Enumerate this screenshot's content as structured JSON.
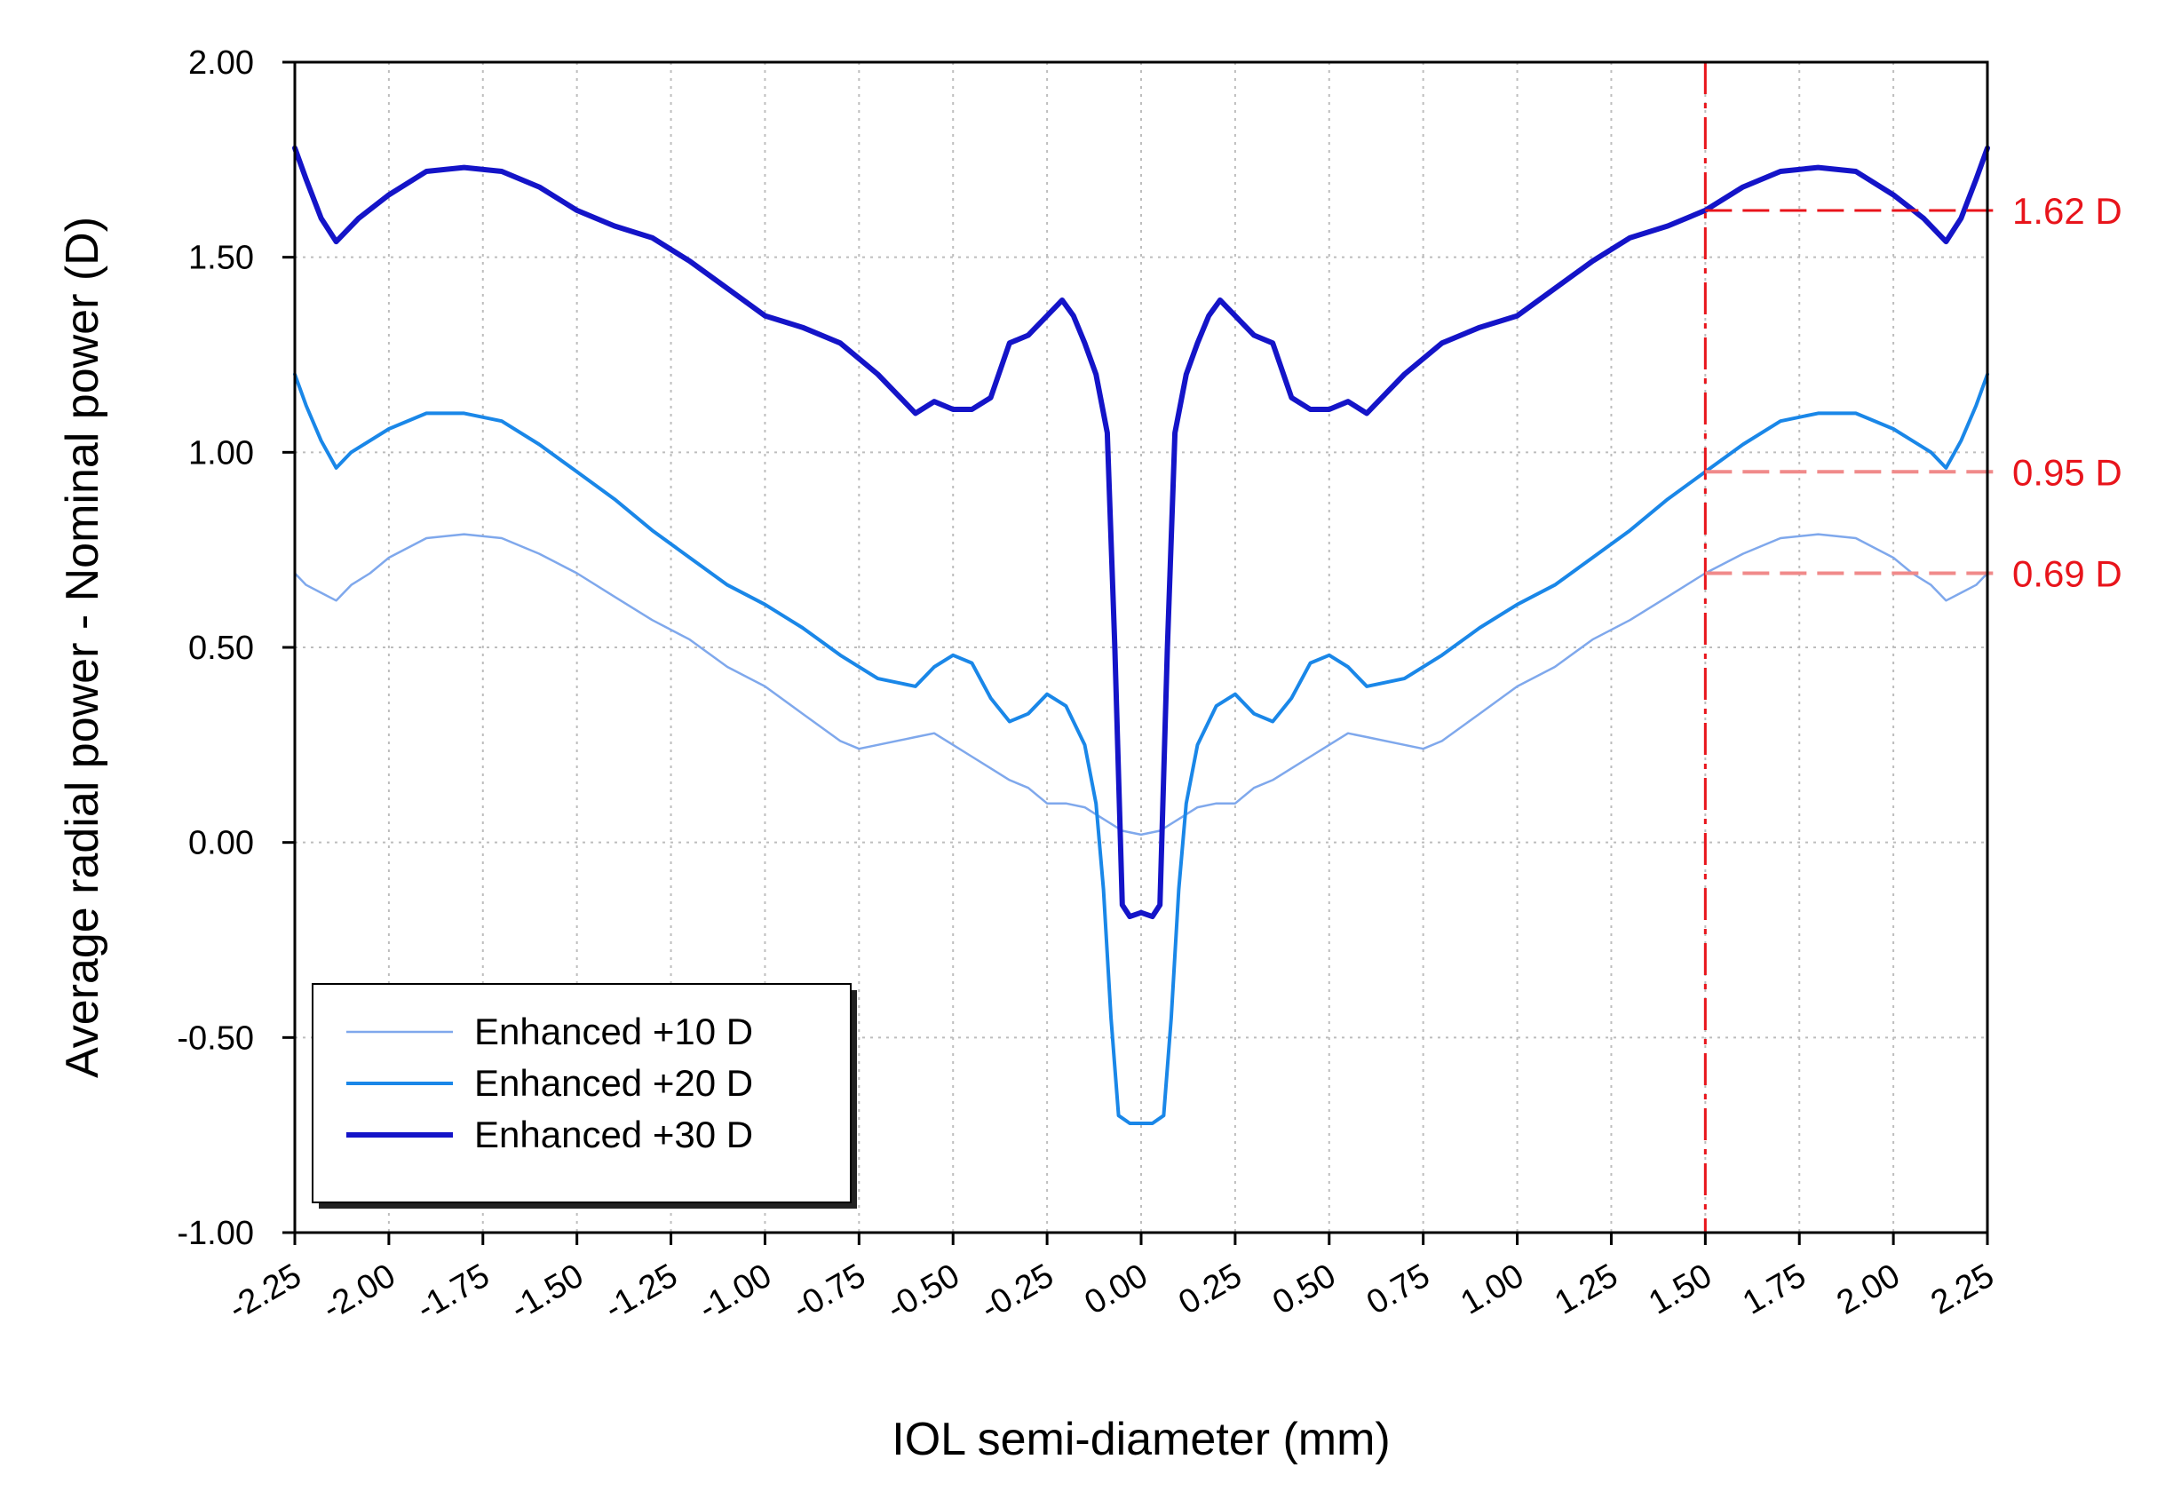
{
  "chart_data": {
    "type": "line",
    "xlabel": "IOL semi-diameter (mm)",
    "ylabel": "Average radial power - Nominal power (D)",
    "xlim": [
      -2.25,
      2.25
    ],
    "ylim": [
      -1.0,
      2.0
    ],
    "x_ticks": [
      -2.25,
      -2.0,
      -1.75,
      -1.5,
      -1.25,
      -1.0,
      -0.75,
      -0.5,
      -0.25,
      0.0,
      0.25,
      0.5,
      0.75,
      1.0,
      1.25,
      1.5,
      1.75,
      2.0,
      2.25
    ],
    "x_tick_labels": [
      "-2.25",
      "-2.00",
      "-1.75",
      "-1.50",
      "-1.25",
      "-1.00",
      "-0.75",
      "-0.50",
      "-0.25",
      "0.00",
      "0.25",
      "0.50",
      "0.75",
      "1.00",
      "1.25",
      "1.50",
      "1.75",
      "2.00",
      "2.25"
    ],
    "y_ticks": [
      -1.0,
      -0.5,
      0.0,
      0.5,
      1.0,
      1.5,
      2.0
    ],
    "y_tick_labels": [
      "-1.00",
      "-0.50",
      "0.00",
      "0.50",
      "1.00",
      "1.50",
      "2.00"
    ],
    "grid": true,
    "legend_position": "bottom-left",
    "highlight_x": 1.5,
    "highlight_x_label": "1.50",
    "highlight_color": "#e8141b",
    "annotations": [
      {
        "series": "Enhanced +30 D",
        "y": 1.62,
        "label": "1.62 D",
        "style": "solid"
      },
      {
        "series": "Enhanced +20 D",
        "y": 0.95,
        "label": "0.95 D",
        "style": "faded"
      },
      {
        "series": "Enhanced +10 D",
        "y": 0.69,
        "label": "0.69 D",
        "style": "faded"
      }
    ],
    "series": [
      {
        "name": "Enhanced +10 D",
        "color": "#7fa8ec",
        "x": [
          0.0,
          0.05,
          0.1,
          0.15,
          0.2,
          0.25,
          0.3,
          0.35,
          0.4,
          0.45,
          0.5,
          0.55,
          0.6,
          0.7,
          0.75,
          0.8,
          0.9,
          1.0,
          1.1,
          1.2,
          1.3,
          1.4,
          1.5,
          1.6,
          1.7,
          1.8,
          1.9,
          2.0,
          2.05,
          2.1,
          2.14,
          2.18,
          2.22,
          2.25
        ],
        "y": [
          0.02,
          0.03,
          0.06,
          0.09,
          0.1,
          0.1,
          0.14,
          0.16,
          0.19,
          0.22,
          0.25,
          0.28,
          0.27,
          0.25,
          0.24,
          0.26,
          0.33,
          0.4,
          0.45,
          0.52,
          0.57,
          0.63,
          0.69,
          0.74,
          0.78,
          0.79,
          0.78,
          0.73,
          0.69,
          0.66,
          0.62,
          0.64,
          0.66,
          0.69
        ]
      },
      {
        "name": "Enhanced +20 D",
        "color": "#1a87e8",
        "x": [
          0.0,
          0.03,
          0.06,
          0.08,
          0.1,
          0.12,
          0.15,
          0.2,
          0.25,
          0.3,
          0.35,
          0.4,
          0.45,
          0.5,
          0.55,
          0.6,
          0.7,
          0.8,
          0.9,
          1.0,
          1.1,
          1.2,
          1.3,
          1.4,
          1.5,
          1.6,
          1.7,
          1.8,
          1.9,
          2.0,
          2.1,
          2.14,
          2.18,
          2.22,
          2.25
        ],
        "y": [
          -0.72,
          -0.72,
          -0.7,
          -0.45,
          -0.12,
          0.1,
          0.25,
          0.35,
          0.38,
          0.33,
          0.31,
          0.37,
          0.46,
          0.48,
          0.45,
          0.4,
          0.42,
          0.48,
          0.55,
          0.61,
          0.66,
          0.73,
          0.8,
          0.88,
          0.95,
          1.02,
          1.08,
          1.1,
          1.1,
          1.06,
          1.0,
          0.96,
          1.03,
          1.12,
          1.2
        ]
      },
      {
        "name": "Enhanced +30 D",
        "color": "#1414c8",
        "x": [
          0.0,
          0.03,
          0.05,
          0.07,
          0.09,
          0.12,
          0.15,
          0.18,
          0.21,
          0.25,
          0.3,
          0.35,
          0.4,
          0.45,
          0.5,
          0.55,
          0.6,
          0.65,
          0.7,
          0.8,
          0.9,
          1.0,
          1.1,
          1.2,
          1.3,
          1.4,
          1.5,
          1.6,
          1.7,
          1.8,
          1.9,
          2.0,
          2.08,
          2.14,
          2.18,
          2.22,
          2.25
        ],
        "y": [
          -0.18,
          -0.19,
          -0.16,
          0.5,
          1.05,
          1.2,
          1.28,
          1.35,
          1.39,
          1.35,
          1.3,
          1.28,
          1.14,
          1.11,
          1.11,
          1.13,
          1.1,
          1.15,
          1.2,
          1.28,
          1.32,
          1.35,
          1.42,
          1.49,
          1.55,
          1.58,
          1.62,
          1.68,
          1.72,
          1.73,
          1.72,
          1.66,
          1.6,
          1.54,
          1.6,
          1.7,
          1.78
        ]
      }
    ]
  }
}
